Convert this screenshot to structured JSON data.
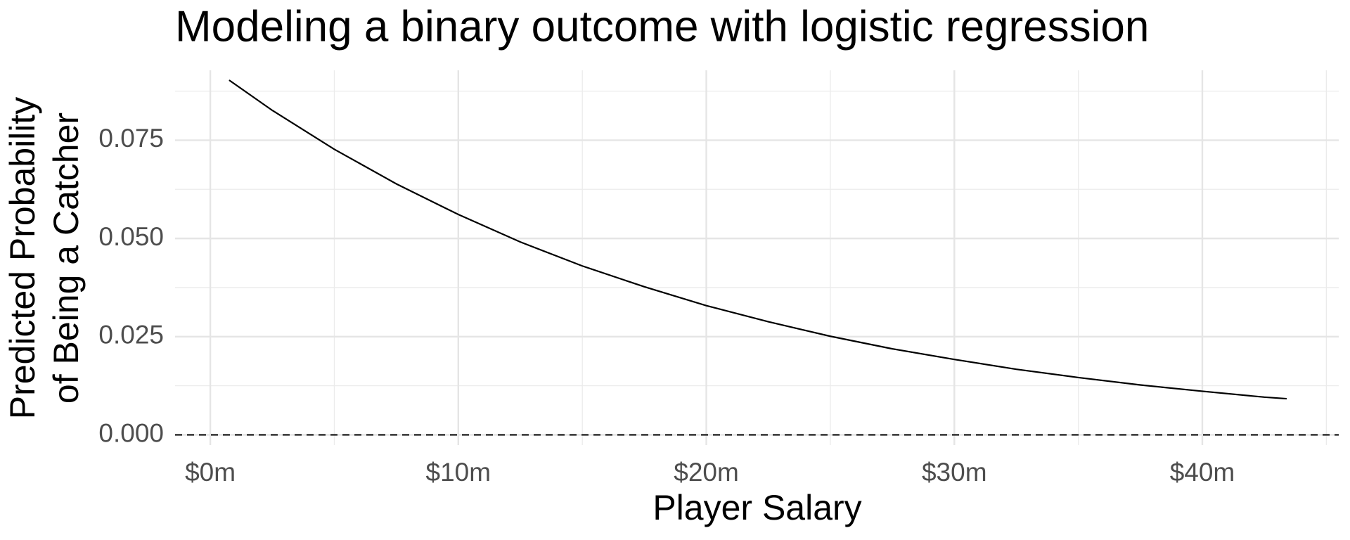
{
  "chart_data": {
    "type": "line",
    "title": "Modeling a binary outcome with logistic regression",
    "xlabel": "Player Salary",
    "ylabel": [
      "Predicted Probability",
      "of Being a Catcher"
    ],
    "x": [
      0.76,
      2.5,
      5,
      7.5,
      10,
      12.5,
      15,
      17.5,
      20,
      22.5,
      25,
      27.5,
      30,
      32.5,
      35,
      37.5,
      40,
      42.5,
      43.4
    ],
    "series": [
      {
        "color": "#000000",
        "values": [
          0.0903,
          0.0826,
          0.0727,
          0.0639,
          0.0561,
          0.0491,
          0.043,
          0.0377,
          0.0329,
          0.0288,
          0.0251,
          0.0219,
          0.0192,
          0.0167,
          0.0146,
          0.0127,
          0.0111,
          0.0096,
          0.0092
        ]
      }
    ],
    "xlim": [
      -1.42,
      45.5
    ],
    "ylim": [
      -0.0026,
      0.0928
    ],
    "xticks": [
      {
        "value": 0,
        "label": "$0m"
      },
      {
        "value": 10,
        "label": "$10m"
      },
      {
        "value": 20,
        "label": "$20m"
      },
      {
        "value": 30,
        "label": "$30m"
      },
      {
        "value": 40,
        "label": "$40m"
      }
    ],
    "yticks": [
      {
        "value": 0,
        "label": "0.000"
      },
      0.025,
      {
        "value": 0.05,
        "label": "0.050"
      },
      0.075
    ],
    "minor_grid_x": [
      5,
      15,
      25,
      35,
      45
    ],
    "minor_grid_y": [
      0.0125,
      0.0375,
      0.0625,
      0.0875
    ],
    "grid": true,
    "hline": {
      "value": 0,
      "style": "dashed",
      "color": "#000000"
    }
  }
}
